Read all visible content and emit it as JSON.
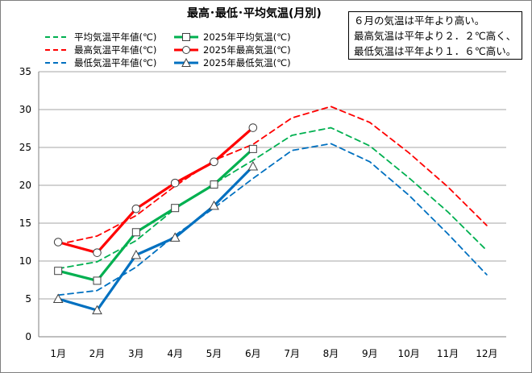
{
  "title": "最高･最低･平均気温(月別)",
  "note_lines": [
    "６月の気温は平年より高い。",
    "最高気温は平年より２．２℃高く、",
    "最低気温は平年より１．６℃高い。"
  ],
  "colors": {
    "avg": "#00b050",
    "max": "#ff0000",
    "min": "#0070c0",
    "grid": "#a6a6a6",
    "axis": "#7f7f7f"
  },
  "chart_data": {
    "type": "line",
    "title": "最高･最低･平均気温(月別)",
    "categories": [
      "1月",
      "2月",
      "3月",
      "4月",
      "5月",
      "6月",
      "7月",
      "8月",
      "9月",
      "10月",
      "11月",
      "12月"
    ],
    "ylim": [
      0,
      35
    ],
    "yticks": [
      0,
      5,
      10,
      15,
      20,
      25,
      30,
      35
    ],
    "grid": true,
    "legend_position": "top-left",
    "series": [
      {
        "name": "平均気温平年値(℃)",
        "style": "dashed",
        "color": "#00b050",
        "marker": "none",
        "values": [
          9.0,
          9.9,
          12.7,
          16.9,
          20.2,
          23.3,
          26.6,
          27.6,
          25.2,
          21.0,
          16.5,
          11.4
        ]
      },
      {
        "name": "2025年平均気温(℃)",
        "style": "solid",
        "color": "#00b050",
        "marker": "square",
        "values": [
          8.7,
          7.4,
          13.8,
          17.0,
          20.1,
          24.8,
          null,
          null,
          null,
          null,
          null,
          null
        ]
      },
      {
        "name": "最高気温平年値(℃)",
        "style": "dashed",
        "color": "#ff0000",
        "marker": "none",
        "values": [
          12.2,
          13.3,
          16.0,
          19.9,
          23.3,
          25.4,
          28.9,
          30.4,
          28.3,
          24.3,
          19.8,
          14.7
        ]
      },
      {
        "name": "2025年最高気温(℃)",
        "style": "solid",
        "color": "#ff0000",
        "marker": "circle",
        "values": [
          12.5,
          11.1,
          16.9,
          20.3,
          23.1,
          27.6,
          null,
          null,
          null,
          null,
          null,
          null
        ]
      },
      {
        "name": "最低気温平年値(℃)",
        "style": "dashed",
        "color": "#0070c0",
        "marker": "none",
        "values": [
          5.5,
          6.1,
          9.2,
          13.4,
          17.0,
          20.9,
          24.6,
          25.5,
          23.1,
          18.7,
          13.6,
          8.2
        ]
      },
      {
        "name": "2025年最低気温(℃)",
        "style": "solid",
        "color": "#0070c0",
        "marker": "triangle",
        "values": [
          5.0,
          3.5,
          10.8,
          13.1,
          17.3,
          22.5,
          null,
          null,
          null,
          null,
          null,
          null
        ]
      }
    ]
  }
}
